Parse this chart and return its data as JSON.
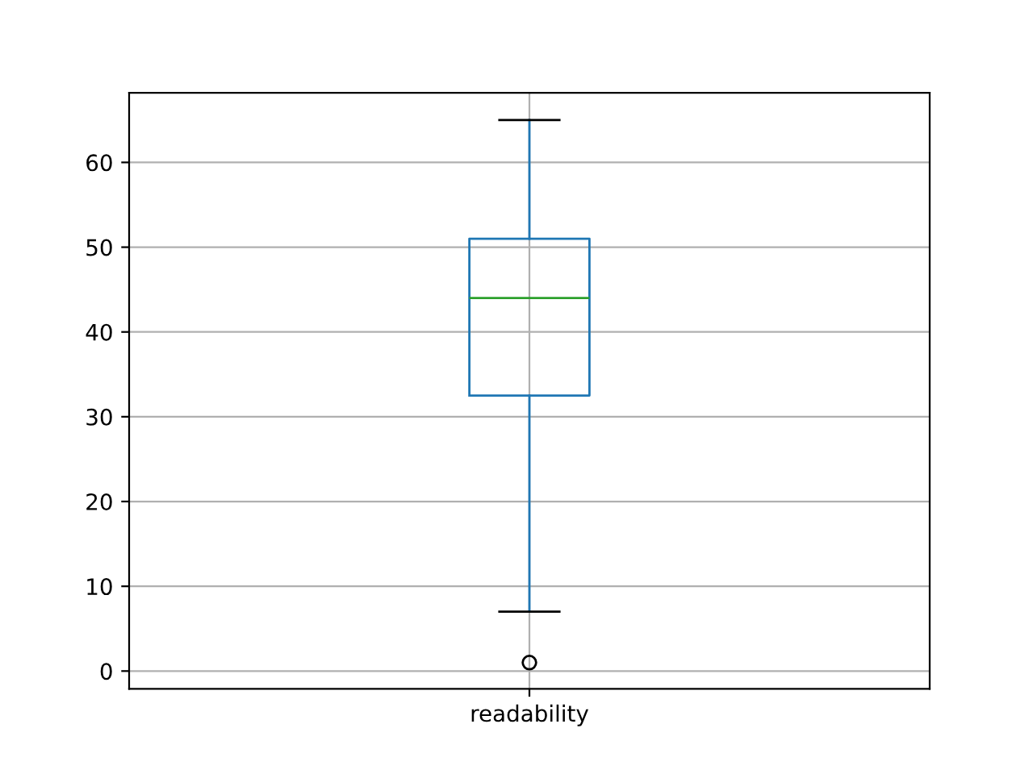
{
  "chart_data": {
    "type": "box",
    "categories": [
      "readability"
    ],
    "boxes": [
      {
        "low": 7,
        "q1": 32.5,
        "median": 44,
        "q3": 51,
        "high": 65,
        "outliers": [
          1
        ]
      }
    ],
    "color": "#1f77b4",
    "ylim": [
      -2.1,
      68.2
    ],
    "yticks": [
      0,
      10,
      20,
      30,
      40,
      50,
      60
    ],
    "grid": true
  }
}
